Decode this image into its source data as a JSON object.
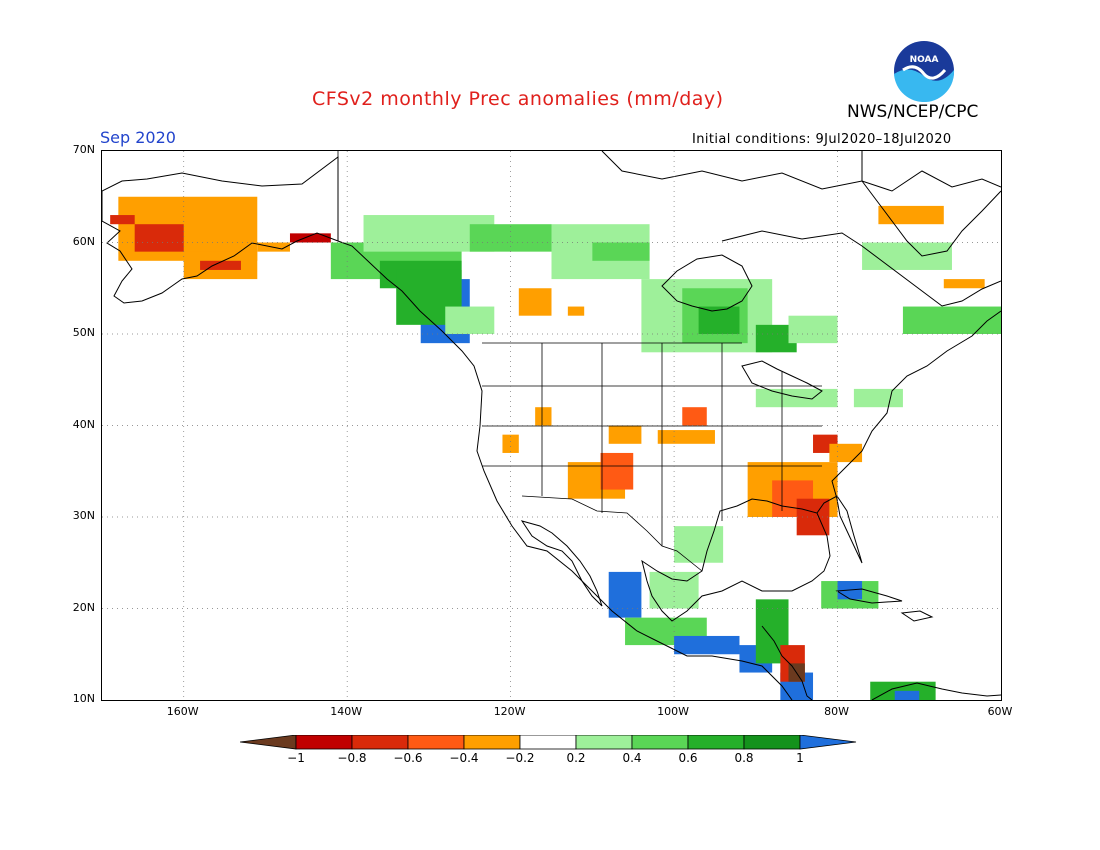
{
  "header": {
    "title": "CFSv2 monthly Prec anomalies (mm/day)",
    "agency": "NWS/NCEP/CPC",
    "month": "Sep 2020",
    "initial_conditions": "Initial conditions: 9Jul2020–18Jul2020",
    "logo_text": "NOAA"
  },
  "map": {
    "lon_range": [
      -170,
      -60
    ],
    "lat_range": [
      10,
      70
    ],
    "lat_labels": [
      "70N",
      "60N",
      "50N",
      "40N",
      "30N",
      "20N",
      "10N"
    ],
    "lon_labels": [
      "160W",
      "140W",
      "120W",
      "100W",
      "80W",
      "60W"
    ],
    "grid": "dotted"
  },
  "legend": {
    "labels": [
      "−1",
      "−0.8",
      "−0.6",
      "−0.4",
      "−0.2",
      "0.2",
      "0.4",
      "0.6",
      "0.8",
      "1"
    ],
    "colors": {
      "lt_neg1": "#6b3a1f",
      "neg1_neg08": "#c00000",
      "neg08_neg06": "#d92a0a",
      "neg06_neg04": "#ff5a14",
      "neg04_neg02": "#ff9f00",
      "neutral": "#ffffff",
      "pos02_04": "#9ef09a",
      "pos04_06": "#5ad656",
      "pos06_08": "#25b02a",
      "pos08_1": "#14921c",
      "gt1": "#1f6fdc"
    }
  }
}
